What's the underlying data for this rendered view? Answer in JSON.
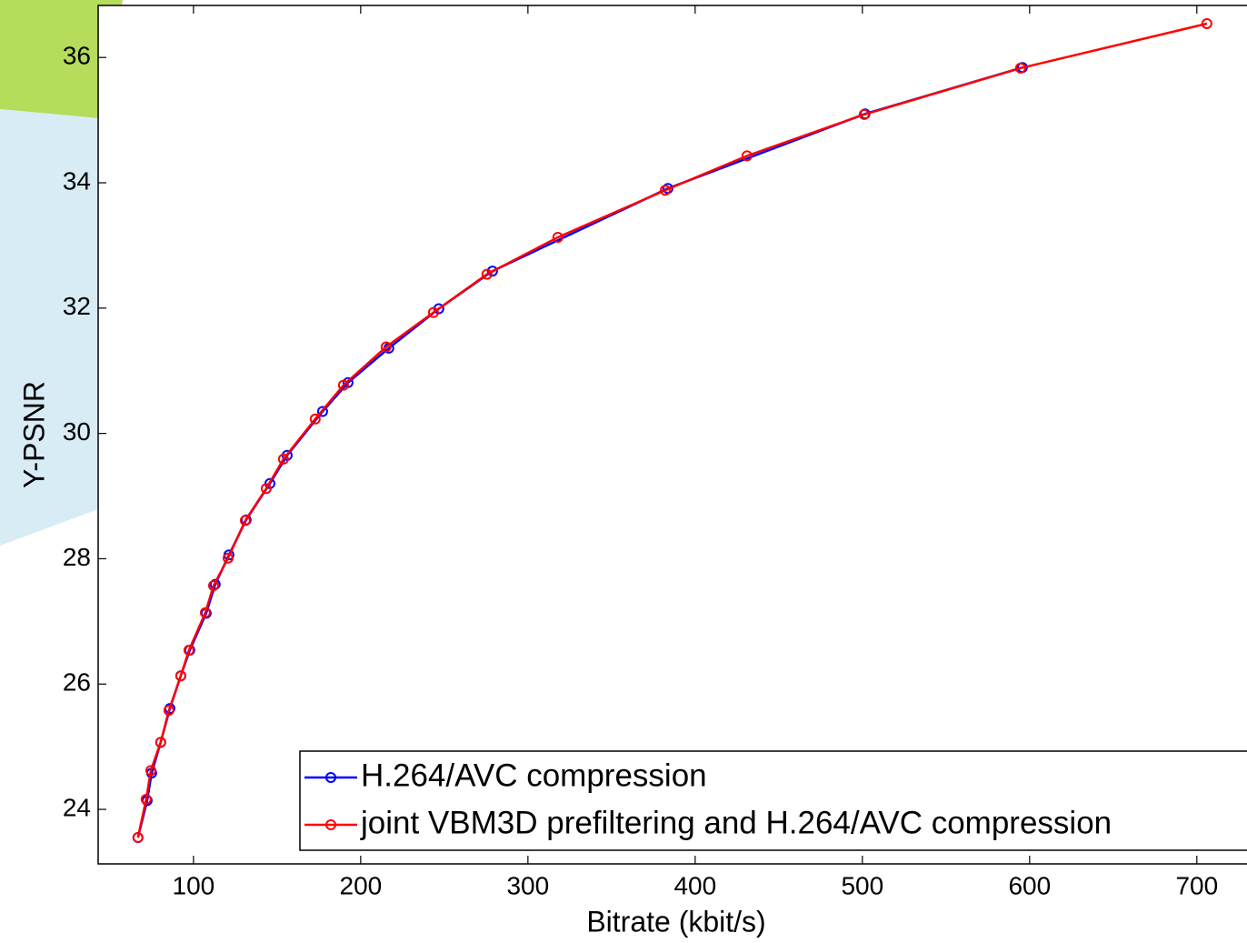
{
  "chart_data": {
    "type": "line",
    "x_label": "Bitrate (kbit/s)",
    "y_label": "Y-PSNR",
    "xlim": [
      43,
      730
    ],
    "ylim": [
      23.13,
      36.83
    ],
    "xticks": [
      100,
      200,
      300,
      400,
      500,
      600,
      700
    ],
    "yticks": [
      24,
      26,
      28,
      30,
      32,
      34,
      36
    ],
    "grid": false,
    "legend_position": "lower right",
    "series": [
      {
        "name": "H.264/AVC compression",
        "color": "#0000ff",
        "x": [
          66.8,
          72.3,
          75.0,
          80.4,
          85.9,
          92.4,
          97.8,
          107.6,
          113.0,
          121.2,
          131.5,
          145.7,
          156.0,
          177.2,
          192.4,
          216.8,
          246.7,
          278.8,
          383.7,
          501.6,
          595.7
        ],
        "values": [
          23.55,
          24.14,
          24.58,
          25.07,
          25.61,
          26.13,
          26.54,
          27.13,
          27.59,
          28.06,
          28.62,
          29.2,
          29.65,
          30.35,
          30.81,
          31.36,
          31.99,
          32.59,
          33.91,
          35.1,
          35.84
        ]
      },
      {
        "name": "joint VBM3D prefiltering and H.264/AVC compression",
        "color": "#ff0000",
        "x": [
          66.8,
          71.7,
          74.5,
          80.4,
          85.3,
          92.4,
          97.3,
          107.1,
          112.0,
          120.7,
          131.0,
          143.5,
          153.8,
          172.8,
          189.7,
          215.2,
          243.5,
          275.5,
          317.9,
          382.1,
          431.0,
          501.1,
          594.6,
          706.0
        ],
        "values": [
          23.55,
          24.16,
          24.62,
          25.07,
          25.58,
          26.13,
          26.54,
          27.14,
          27.57,
          28.01,
          28.61,
          29.12,
          29.59,
          30.23,
          30.77,
          31.38,
          31.93,
          32.54,
          33.13,
          33.88,
          34.43,
          35.09,
          35.83,
          36.54
        ]
      }
    ]
  }
}
